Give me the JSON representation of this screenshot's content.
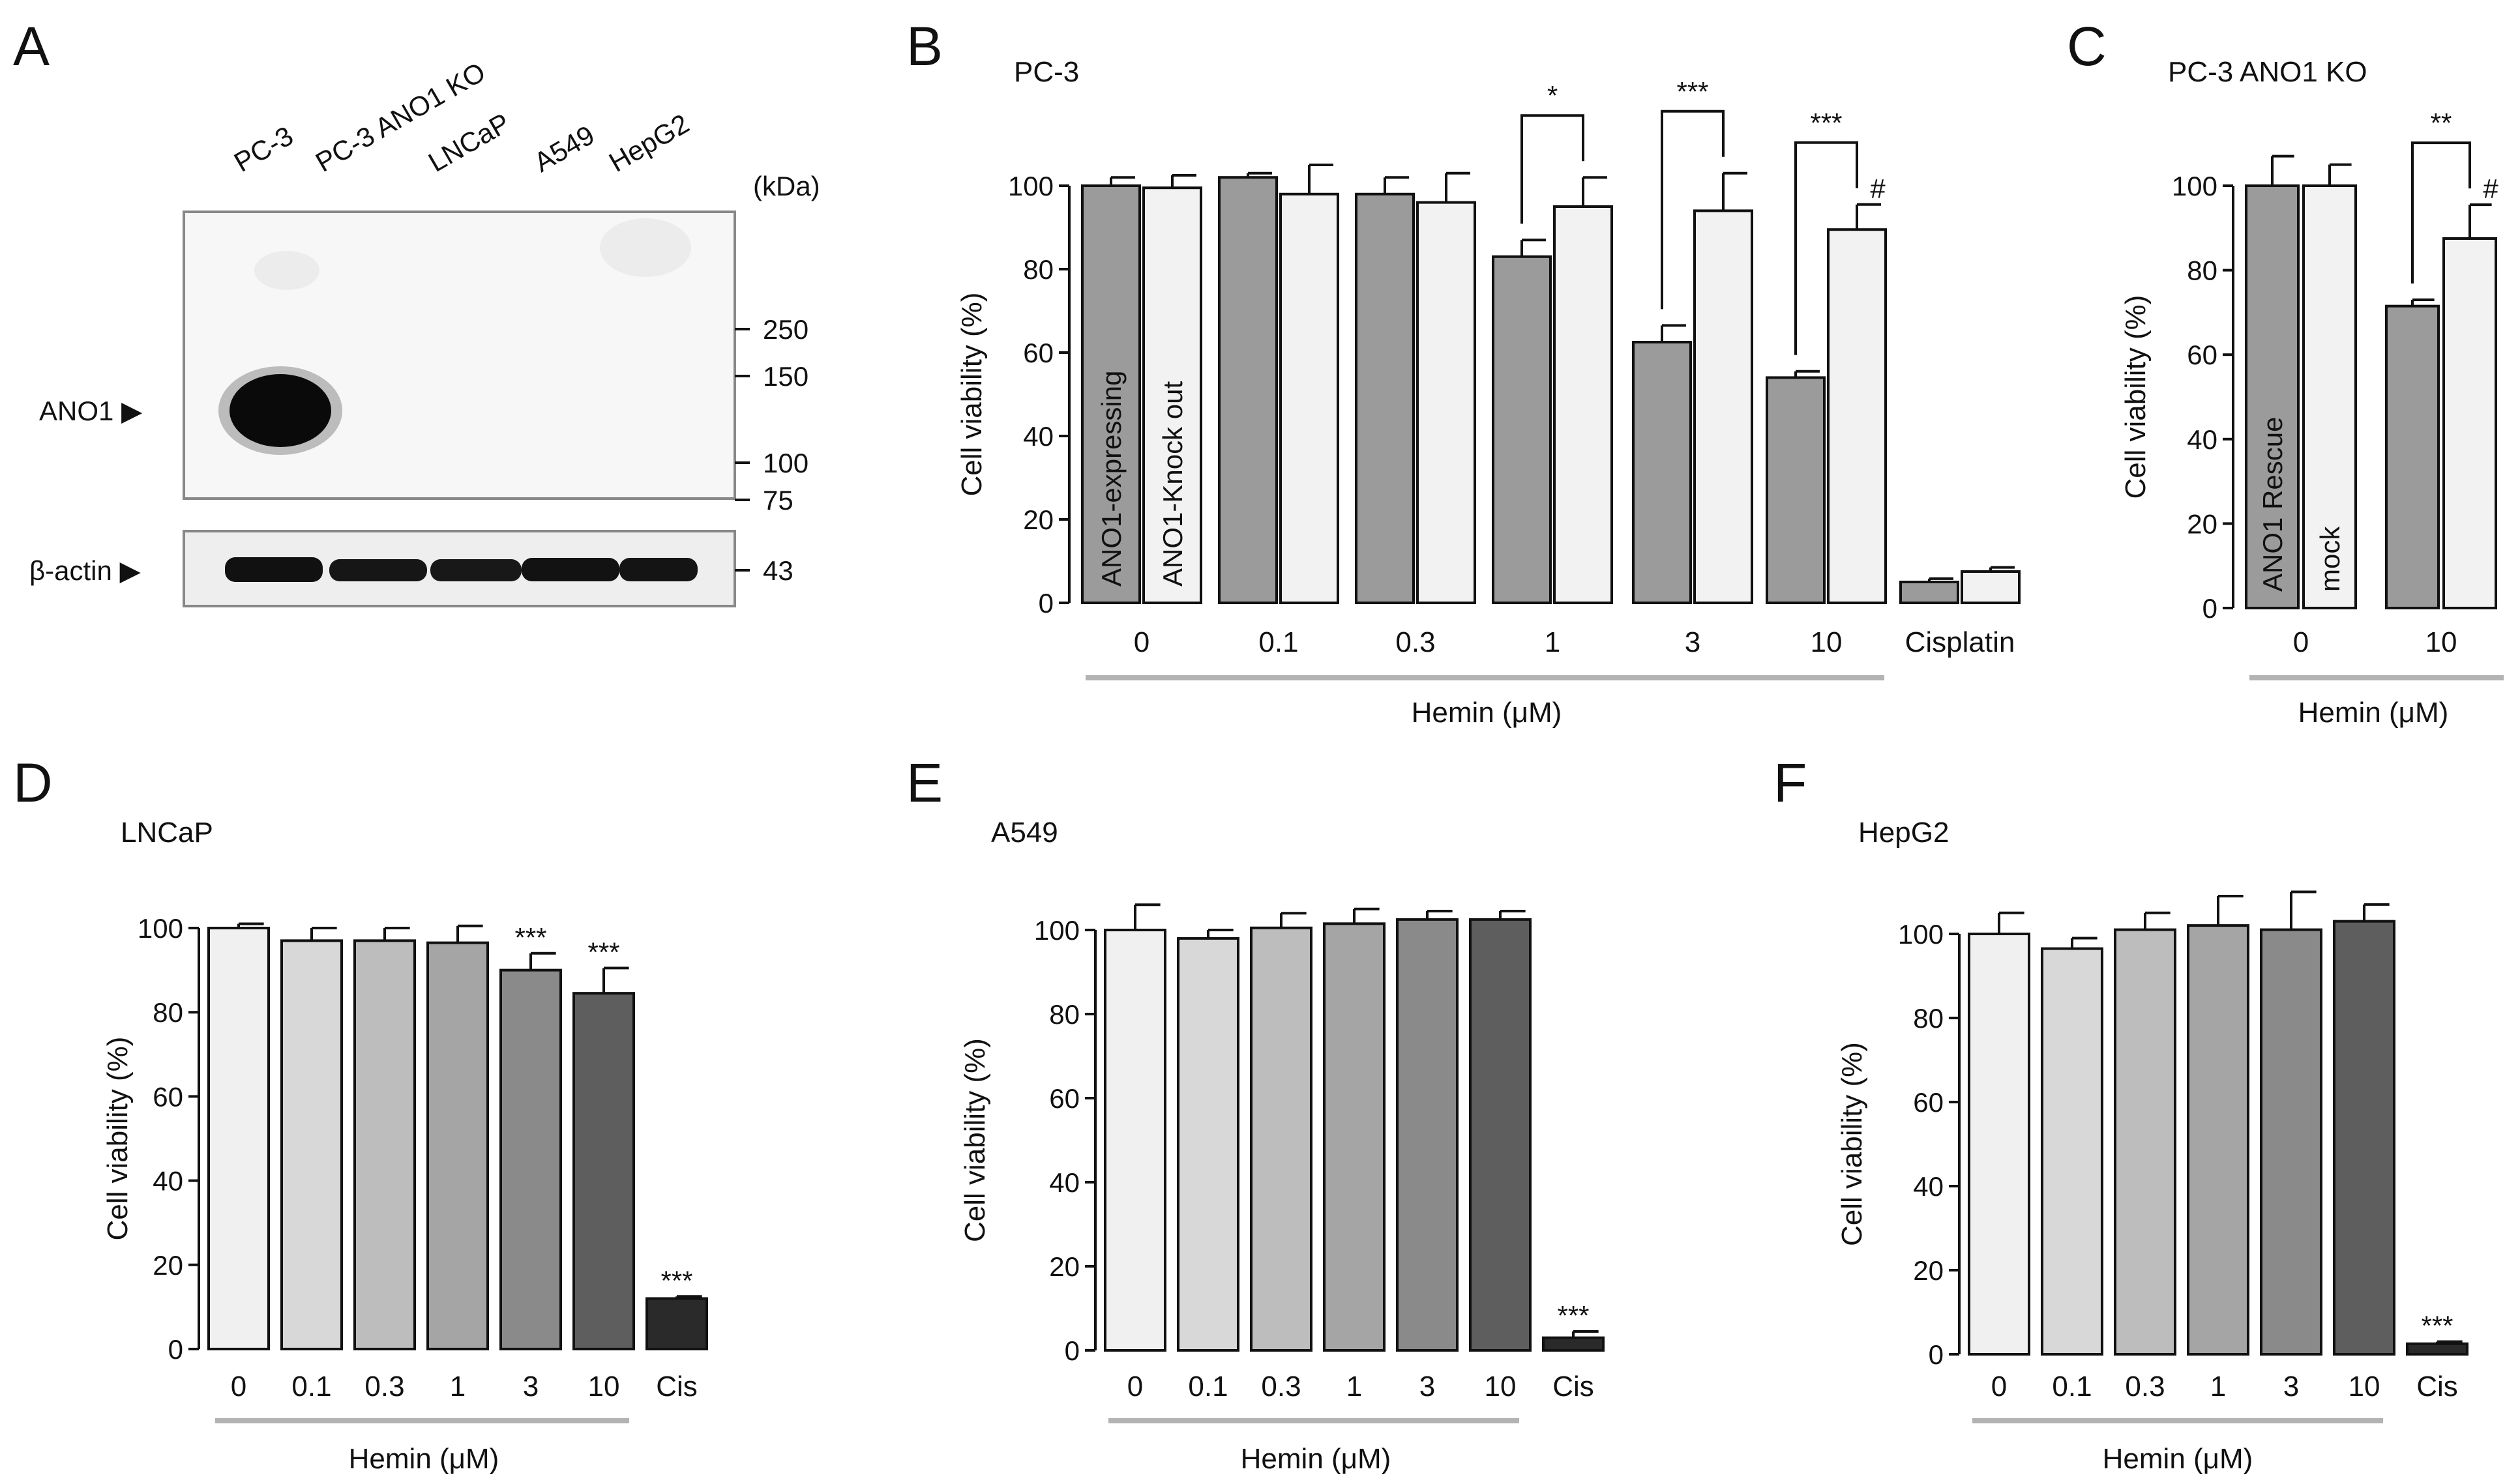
{
  "blot": {
    "panel": "A",
    "lanes": [
      "PC-3",
      "PC-3 ANO1 KO",
      "LNCaP",
      "A549",
      "HepG2"
    ],
    "unit_label": "(kDa)",
    "markers": [
      "250",
      "150",
      "100",
      "75"
    ],
    "actin_marker": "43",
    "target_label": "ANO1 ▶",
    "loading_label": "β-actin ▶"
  },
  "colors": {
    "dark_gray": "#9b9b9b",
    "light_gray": "#f2f2f2",
    "c0": "#f0f0f0",
    "c1": "#d8d8d8",
    "c2": "#bdbdbd",
    "c3": "#a5a5a5",
    "c4": "#8a8a8a",
    "c5": "#5e5e5e",
    "cis": "#2a2a2a"
  },
  "chart_data": [
    {
      "panel": "B",
      "type": "bar",
      "title": "PC-3",
      "ylabel": "Cell viability (%)",
      "xlabel": "Hemin (μM)",
      "ylim": [
        0,
        100
      ],
      "yticks": [
        0,
        20,
        40,
        60,
        80,
        100
      ],
      "categories": [
        "0",
        "0.1",
        "0.3",
        "1",
        "3",
        "10",
        "Cisplatin"
      ],
      "series": [
        {
          "name": "ANO1-expressing",
          "values": [
            100,
            102,
            98,
            83,
            62.5,
            54,
            5
          ],
          "errors": [
            2,
            1,
            4,
            4,
            4,
            1.5,
            0.8
          ]
        },
        {
          "name": "ANO1-Knock out",
          "values": [
            99.5,
            98,
            96,
            95,
            94,
            89.5,
            7.5
          ],
          "errors": [
            3,
            7,
            7,
            7,
            9,
            6,
            1
          ]
        }
      ],
      "significance": [
        {
          "category": "1",
          "label": "*"
        },
        {
          "category": "3",
          "label": "***"
        },
        {
          "category": "10",
          "label": "***"
        },
        {
          "category": "10",
          "label": "#"
        }
      ]
    },
    {
      "panel": "C",
      "type": "bar",
      "title": "PC-3 ANO1 KO",
      "ylabel": "Cell viability (%)",
      "xlabel": "Hemin (μM)",
      "ylim": [
        0,
        100
      ],
      "yticks": [
        0,
        20,
        40,
        60,
        80,
        100
      ],
      "categories": [
        "0",
        "10"
      ],
      "series": [
        {
          "name": "ANO1 Rescue",
          "values": [
            100,
            71.5
          ],
          "errors": [
            7,
            1.5
          ]
        },
        {
          "name": "mock",
          "values": [
            100,
            87.5
          ],
          "errors": [
            5,
            8
          ]
        }
      ],
      "significance": [
        {
          "category": "10",
          "label": "**"
        },
        {
          "category": "10",
          "label": "#"
        }
      ]
    },
    {
      "panel": "D",
      "type": "bar",
      "title": "LNCaP",
      "ylabel": "Cell viability (%)",
      "xlabel": "Hemin (μM)",
      "ylim": [
        0,
        100
      ],
      "yticks": [
        0,
        20,
        40,
        60,
        80,
        100
      ],
      "categories": [
        "0",
        "0.1",
        "0.3",
        "1",
        "3",
        "10",
        "Cis"
      ],
      "values": [
        100,
        97,
        97,
        96.5,
        90,
        84.5,
        12
      ],
      "errors": [
        1,
        3,
        3,
        4,
        4,
        6,
        0.5
      ],
      "marks": [
        "",
        "",
        "",
        "",
        "***",
        "***",
        "***"
      ]
    },
    {
      "panel": "E",
      "type": "bar",
      "title": "A549",
      "ylabel": "Cell viability (%)",
      "xlabel": "Hemin (μM)",
      "ylim": [
        0,
        100
      ],
      "yticks": [
        0,
        20,
        40,
        60,
        80,
        100
      ],
      "categories": [
        "0",
        "0.1",
        "0.3",
        "1",
        "3",
        "10",
        "Cis"
      ],
      "values": [
        100,
        98,
        100.5,
        101.5,
        102.5,
        102.5,
        3
      ],
      "errors": [
        6,
        2,
        3.5,
        3.5,
        2,
        2,
        1.5
      ],
      "marks": [
        "",
        "",
        "",
        "",
        "",
        "",
        "***"
      ]
    },
    {
      "panel": "F",
      "type": "bar",
      "title": "HepG2",
      "ylabel": "Cell viability (%)",
      "xlabel": "Hemin (μM)",
      "ylim": [
        0,
        100
      ],
      "yticks": [
        0,
        20,
        40,
        60,
        80,
        100
      ],
      "categories": [
        "0",
        "0.1",
        "0.3",
        "1",
        "3",
        "10",
        "Cis"
      ],
      "values": [
        100,
        96.5,
        101,
        102,
        101,
        103,
        2.5
      ],
      "errors": [
        5,
        2.5,
        4,
        7,
        9,
        4,
        0.5
      ],
      "marks": [
        "",
        "",
        "",
        "",
        "",
        "",
        "***"
      ]
    }
  ]
}
